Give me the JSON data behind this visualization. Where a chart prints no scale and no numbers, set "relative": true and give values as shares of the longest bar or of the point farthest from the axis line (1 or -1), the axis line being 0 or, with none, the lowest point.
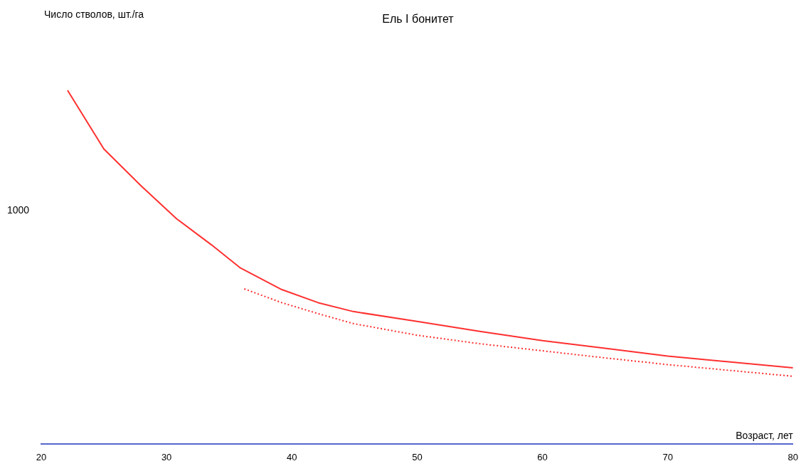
{
  "chart_data": {
    "type": "line",
    "title": "Ель I бонитет",
    "xlabel": "Возраст, лет",
    "relative": true,
    "xlim": [
      20,
      80
    ],
    "xticks": [
      20,
      30,
      40,
      50,
      60,
      70,
      80
    ],
    "legend": false,
    "marker": "none",
    "annotations": [
      "Число стволов, шт./га",
      "1000"
    ],
    "series": [
      {
        "color": "#ff3030",
        "line_style": "solid",
        "x": [
          22.1,
          25,
          28,
          30.8,
          33.6,
          35.9,
          39.2,
          42.1,
          44.9,
          50,
          55,
          60,
          65,
          70,
          80
        ],
        "values": [
          1.0,
          0.834,
          0.729,
          0.637,
          0.563,
          0.498,
          0.437,
          0.4,
          0.375,
          0.347,
          0.319,
          0.293,
          0.271,
          0.249,
          0.216
        ]
      },
      {
        "color": "#ff3030",
        "line_style": "dotted",
        "x": [
          36.2,
          39.2,
          42.1,
          44.9,
          50,
          55,
          60,
          65,
          70,
          80
        ],
        "values": [
          0.439,
          0.4,
          0.369,
          0.341,
          0.308,
          0.284,
          0.264,
          0.244,
          0.225,
          0.192
        ]
      }
    ]
  }
}
